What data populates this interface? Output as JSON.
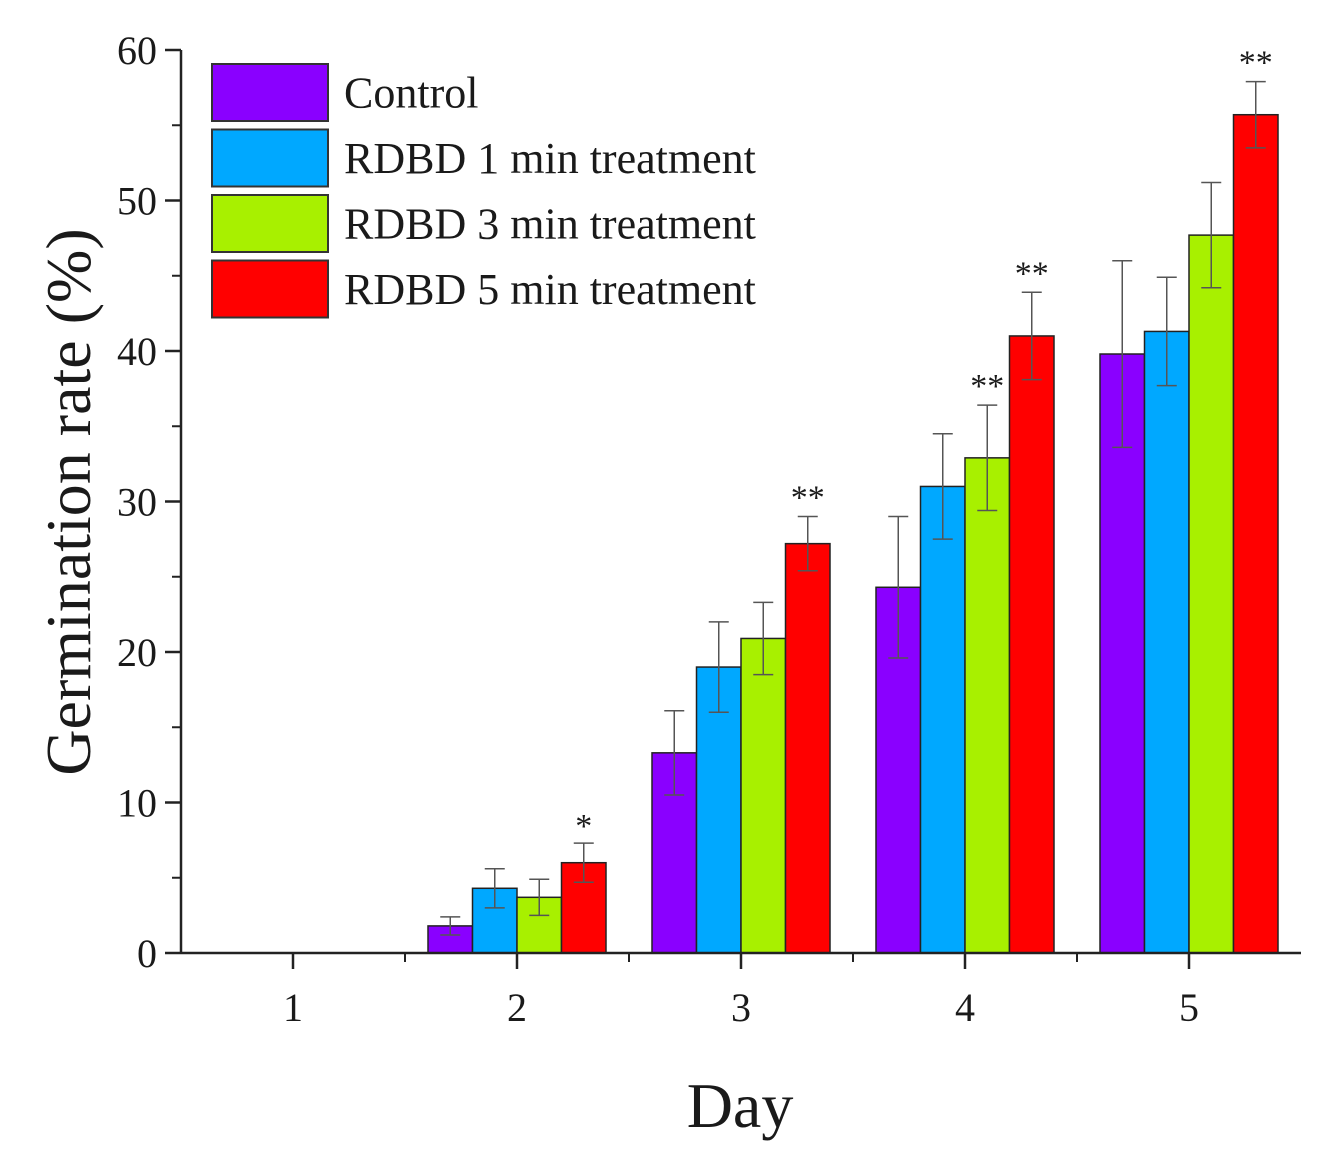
{
  "chart_data": {
    "type": "bar",
    "title": "",
    "xlabel": "Day",
    "ylabel": "Germination rate (%)",
    "categories": [
      "1",
      "2",
      "3",
      "4",
      "5"
    ],
    "ylim": [
      0,
      60
    ],
    "yticks": [
      "0",
      "10",
      "20",
      "30",
      "40",
      "50",
      "60"
    ],
    "grid": false,
    "legend_position": "top-left",
    "series": [
      {
        "name": "Control",
        "color": "#8a00ff",
        "values": [
          0,
          1.8,
          13.3,
          24.3,
          39.8
        ],
        "errors": [
          0,
          0.6,
          2.8,
          4.7,
          6.2
        ],
        "significance": [
          "",
          "",
          "",
          "",
          ""
        ]
      },
      {
        "name": "RDBD 1 min treatment",
        "color": "#00a8ff",
        "values": [
          0,
          4.3,
          19.0,
          31.0,
          41.3
        ],
        "errors": [
          0,
          1.3,
          3.0,
          3.5,
          3.6
        ],
        "significance": [
          "",
          "",
          "",
          "",
          ""
        ]
      },
      {
        "name": "RDBD 3 min treatment",
        "color": "#a8f000",
        "values": [
          0,
          3.7,
          20.9,
          32.9,
          47.7
        ],
        "errors": [
          0,
          1.2,
          2.4,
          3.5,
          3.5
        ],
        "significance": [
          "",
          "",
          "",
          "**",
          ""
        ]
      },
      {
        "name": "RDBD 5 min treatment",
        "color": "#ff0000",
        "values": [
          0,
          6.0,
          27.2,
          41.0,
          55.7
        ],
        "errors": [
          0,
          1.3,
          1.8,
          2.9,
          2.2
        ],
        "significance": [
          "",
          "*",
          "**",
          "**",
          "**"
        ]
      }
    ]
  }
}
